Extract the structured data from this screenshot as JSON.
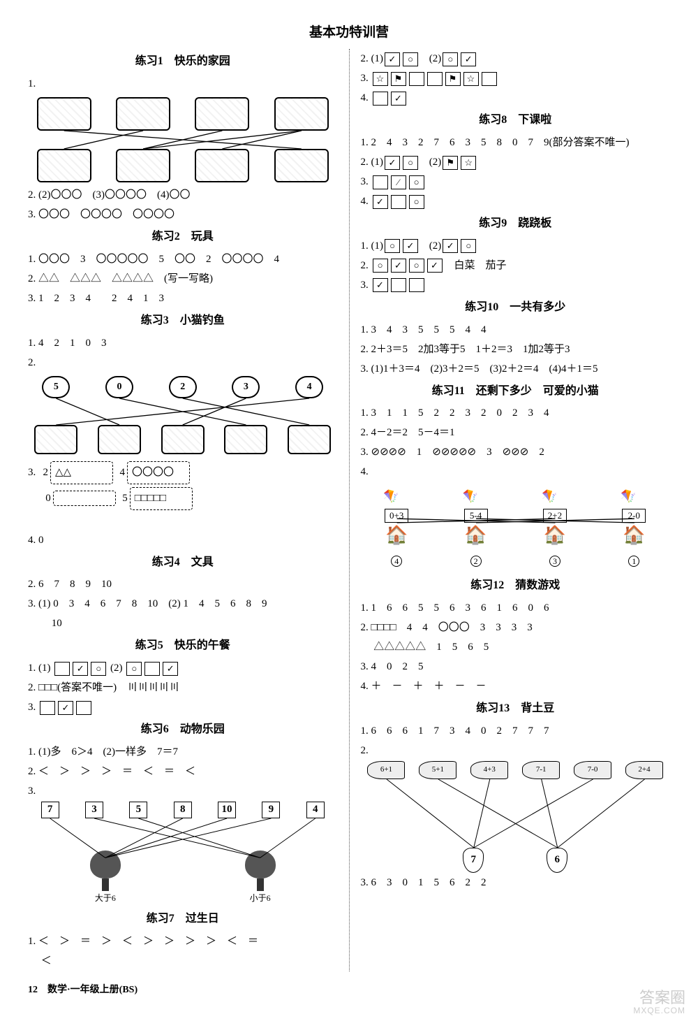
{
  "title": "基本功特训营",
  "footer": {
    "page": "12",
    "label": "数学·一年级上册(BS)"
  },
  "watermark": {
    "top": "答案圈",
    "bottom": "MXQE.COM"
  },
  "left": {
    "s1": {
      "title": "练习1　快乐的家园",
      "top_labels": [
        "",
        "",
        "",
        ""
      ],
      "bot_labels": [
        "",
        "",
        "",
        ""
      ],
      "lines": [
        [
          0,
          3
        ],
        [
          1,
          0
        ],
        [
          2,
          1
        ],
        [
          3,
          2
        ],
        [
          3,
          1
        ]
      ],
      "q2": "2. (2)〇〇〇　(3)〇〇〇〇　(4)〇〇",
      "q3": "3. 〇〇〇　〇〇〇〇　〇〇〇〇"
    },
    "s2": {
      "title": "练习2　玩具",
      "q1": "1. 〇〇〇　3　〇〇〇〇〇　5　〇〇　2　〇〇〇〇　4",
      "q2_pre": "2. △△　△△△　△△△△　",
      "q2_note": "(写一写略)",
      "q3": "3. 1　2　3　4　　2　4　1　3"
    },
    "s3": {
      "title": "练习3　小猫钓鱼",
      "q1": "1. 4　2　1　0　3",
      "clouds": [
        "5",
        "0",
        "2",
        "3",
        "4"
      ],
      "match": [
        [
          0,
          1
        ],
        [
          1,
          3
        ],
        [
          2,
          4
        ],
        [
          3,
          2
        ],
        [
          4,
          0
        ]
      ],
      "q3_rows": [
        {
          "n": "2",
          "fill": "△△"
        },
        {
          "n": "4",
          "fill": "〇〇〇〇"
        },
        {
          "n": "0",
          "fill": ""
        },
        {
          "n": "5",
          "fill": "□□□□□"
        }
      ],
      "q4": "4. 0"
    },
    "s4": {
      "title": "练习4　文具",
      "q2": "2. 6　7　8　9　10",
      "q3a": "3. (1) 0　3　4　6　7　8　10　(2) 1　4　5　6　8　9",
      "q3b": "　　 10"
    },
    "s5": {
      "title": "练习5　快乐的午餐",
      "q1_pre": "1. (1)",
      "q1_mid": "(2)",
      "q1_boxesA": [
        "",
        "✓",
        "○"
      ],
      "q1_boxesB": [
        "○",
        "",
        "✓"
      ],
      "q2_pre": "2. □□□(答案不唯一)　",
      "q2_tally": "〣〣〣〣〣",
      "q3_boxes": [
        "",
        "✓",
        ""
      ]
    },
    "s6": {
      "title": "练习6　动物乐园",
      "q1": "1. (1)多　6＞4　(2)一样多　7＝7",
      "q2": "2. ＜　＞　＞　＞　＝　＜　＝　＜",
      "nums": [
        "7",
        "3",
        "5",
        "8",
        "10",
        "9",
        "4"
      ],
      "tree_labels": [
        "大于6",
        "小于6"
      ],
      "lines_left": [
        0,
        3,
        4,
        5
      ],
      "lines_right": [
        1,
        2,
        6
      ]
    },
    "s7": {
      "title": "练习7　过生日",
      "q1a": "1. ＜　＞　＝　＞　＜　＞　＞　＞　＞　＜　＝",
      "q1b": "　 ＜"
    }
  },
  "right": {
    "s7c": {
      "q2_pre": "2. (1)",
      "q2_a": [
        "✓",
        "○"
      ],
      "q2_mid": "(2)",
      "q2_b": [
        "○",
        "✓"
      ],
      "q3_boxes": [
        "☆",
        "⚑",
        "",
        "",
        "⚑",
        "☆",
        ""
      ],
      "q4_boxes": [
        "",
        "✓"
      ]
    },
    "s8": {
      "title": "练习8　下课啦",
      "q1": "1. 2　4　3　2　7　6　3　5　8　0　7　9(部分答案不唯一)",
      "q2_pre": "2. (1)",
      "q2_a": [
        "✓",
        "○"
      ],
      "q2_mid": "(2)",
      "q2_b": [
        "⚑",
        "☆"
      ],
      "q3_boxes": [
        "",
        "∕",
        "○"
      ],
      "q4_boxes": [
        "✓",
        "",
        "○"
      ]
    },
    "s9": {
      "title": "练习9　跷跷板",
      "q1_pre": "1. (1)",
      "q1_a": [
        "○",
        "✓"
      ],
      "q1_mid": "(2)",
      "q1_b": [
        "✓",
        "○"
      ],
      "q2_boxes": [
        "○",
        "✓",
        "○",
        "✓"
      ],
      "q2_text": "白菜　茄子",
      "q3_boxes": [
        "✓",
        "",
        ""
      ]
    },
    "s10": {
      "title": "练习10　一共有多少",
      "q1": "1. 3　4　3　5　5　5　4　4",
      "q2": "2. 2＋3＝5　2加3等于5　1＋2＝3　1加2等于3",
      "q3": "3. (1)1＋3＝4　(2)3＋2＝5　(3)2＋2＝4　(4)4＋1＝5"
    },
    "s11": {
      "title": "练习11　还剩下多少　可爱的小猫",
      "q1": "1. 3　1　1　5　2　2　3　2　0　2　3　4",
      "q2": "2. 4－2＝2　5－4＝1",
      "q3": "3. ⊘⊘⊘⊘　1　⊘⊘⊘⊘⊘　3　⊘⊘⊘　2",
      "kites": [
        "0+3",
        "5-4",
        "2+2",
        "2-0"
      ],
      "houses": [
        "4",
        "2",
        "3",
        "1"
      ],
      "lines": [
        [
          0,
          2
        ],
        [
          1,
          3
        ],
        [
          2,
          0
        ],
        [
          3,
          1
        ]
      ]
    },
    "s12": {
      "title": "练习12　猜数游戏",
      "q1": "1. 1　6　6　5　5　6　3　6　1　6　0　6",
      "q2a": "2. □□□□　4　4　〇〇〇　3　3　3　3",
      "q2b": "　 △△△△△　1　5　6　5",
      "q3": "3. 4　0　2　5",
      "q4": "4. ＋　－　＋　＋　－　－"
    },
    "s13": {
      "title": "练习13　背土豆",
      "q1": "1. 6　6　6　1　7　3　4　0　2　7　7　7",
      "fish": [
        "6+1",
        "5+1",
        "4+3",
        "7-1",
        "7-0",
        "2+4"
      ],
      "jars": [
        "7",
        "6"
      ],
      "lines7": [
        0,
        2,
        4
      ],
      "lines6": [
        1,
        3,
        5
      ],
      "q3": "3. 6　3　0　1　5　6　2　2"
    }
  }
}
